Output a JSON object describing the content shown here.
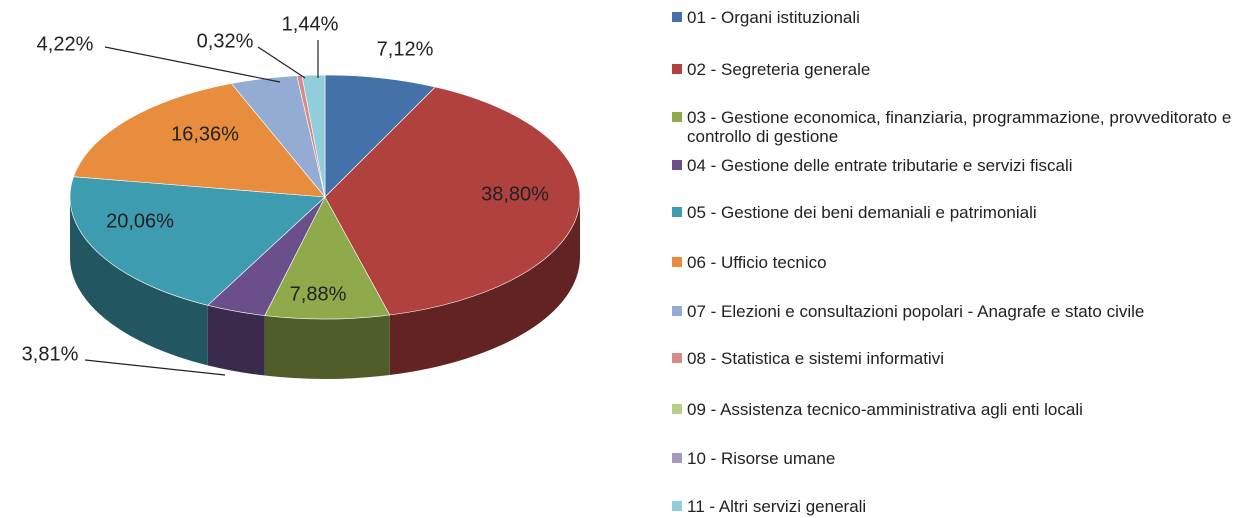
{
  "chart_data": {
    "type": "pie",
    "categories": [
      "01 - Organi istituzionali",
      "02 - Segreteria generale",
      "03 - Gestione economica, finanziaria,  programmazione, provveditorato e controllo di gestione",
      "04 - Gestione delle entrate tributarie e servizi fiscali",
      "05 - Gestione dei beni demaniali e patrimoniali",
      "06 - Ufficio tecnico",
      "07 - Elezioni e consultazioni popolari - Anagrafe e stato civile",
      "08 -  Statistica e sistemi informativi",
      "09 -  Assistenza tecnico-amministrativa agli enti locali",
      "10 - Risorse umane",
      "11 - Altri servizi generali"
    ],
    "values": [
      7.12,
      38.8,
      7.88,
      3.81,
      20.06,
      16.36,
      4.22,
      0.32,
      0,
      0,
      1.44
    ],
    "value_labels": [
      "7,12%",
      "38,80%",
      "7,88%",
      "3,81%",
      "20,06%",
      "16,36%",
      "4,22%",
      "0,32%",
      null,
      null,
      "1,44%"
    ],
    "colors": [
      "#4472a8",
      "#b0413e",
      "#8faa4a",
      "#6a4f8a",
      "#3d9cb0",
      "#e88c3d",
      "#94acd4",
      "#d88a87",
      "#b7cf8a",
      "#a898c0",
      "#92cddc"
    ],
    "legend": "right"
  }
}
